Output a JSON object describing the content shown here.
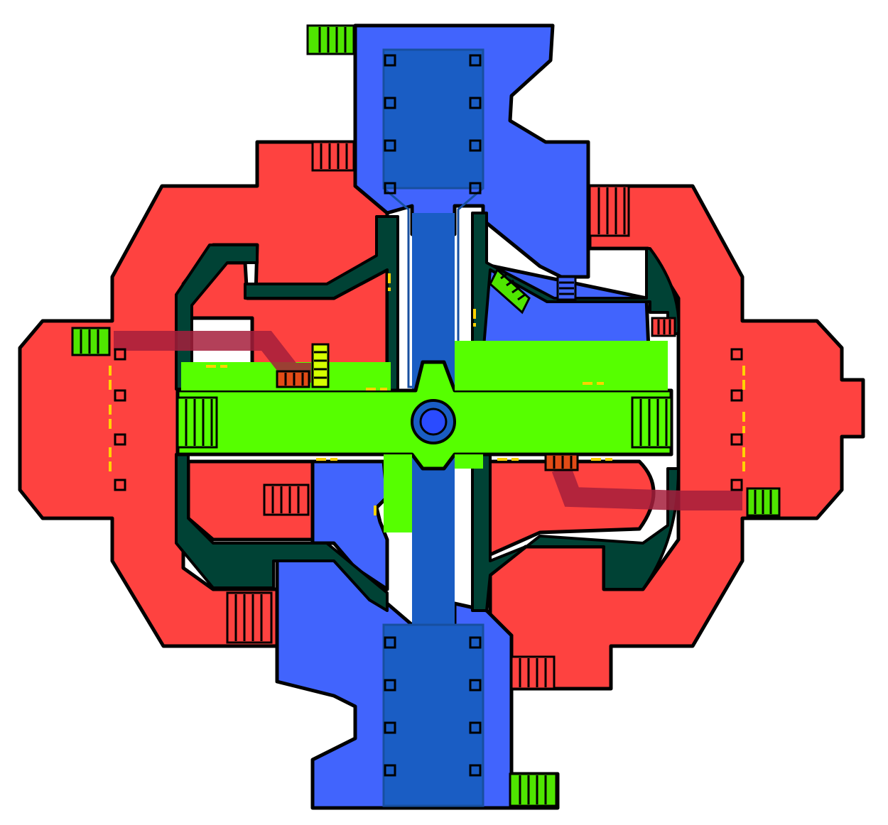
{
  "map": {
    "layout": "symmetric arena",
    "colors": {
      "red_team": "#fe4240",
      "blue_team": "#4164fd",
      "blue_lane": "#1a5dc4",
      "neutral_green": "#56ff00",
      "dark_teal": "#004235",
      "stairs_green": "#4fe600",
      "maroon_ramp": "#a61f3c",
      "orange_stairs": "#e24b16",
      "yellow_door": "#ffd200",
      "outline": "#000000"
    },
    "zones": [
      "red-west-wing",
      "red-east-wing",
      "blue-north-corridor",
      "blue-south-corridor",
      "green-center-hall"
    ],
    "icons": [
      "spawn-point-icon",
      "stairs-icon",
      "pillar-icon",
      "door-icon",
      "ramp-icon"
    ]
  }
}
